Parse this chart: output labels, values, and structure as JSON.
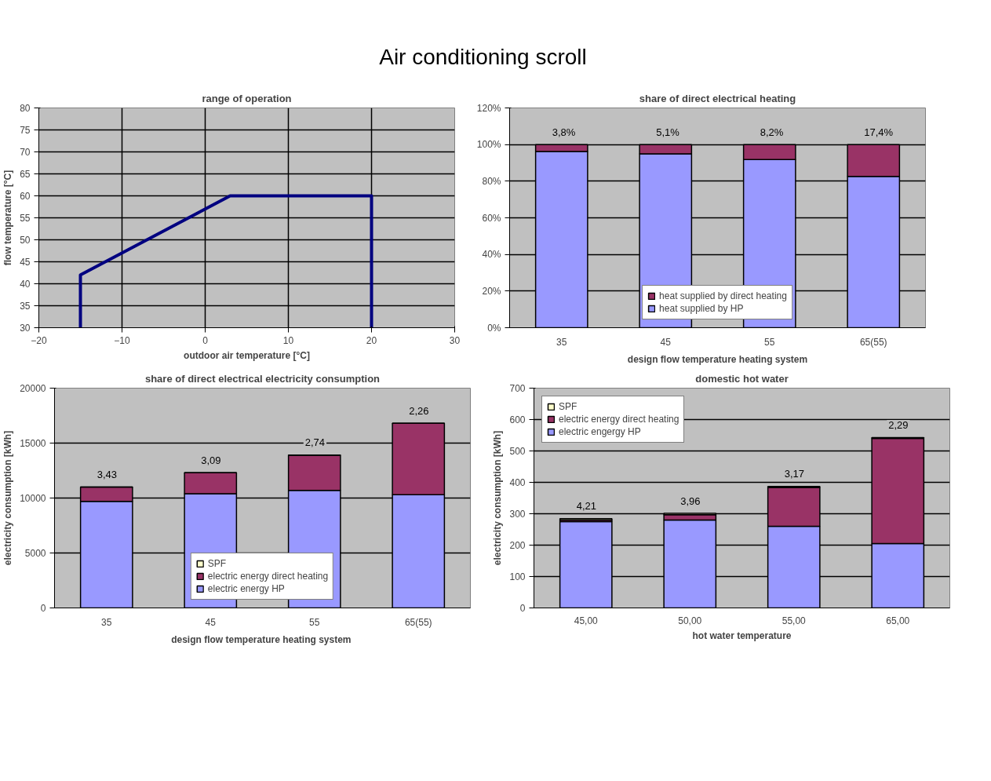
{
  "chart_data": [
    {
      "type": "other",
      "title": "Air conditioning scroll"
    },
    {
      "type": "line",
      "title": "range of operation",
      "xlabel": "outdoor air temperature [°C]",
      "ylabel": "flow temperature [°C]",
      "x": [
        -15,
        -15,
        3,
        20,
        20
      ],
      "series": [
        {
          "color": "#000080",
          "values": [
            30,
            42,
            60,
            60,
            30
          ]
        }
      ],
      "xlim": [
        -20,
        30
      ],
      "xticks": [
        -20,
        -10,
        0,
        10,
        20,
        30
      ],
      "ylim": [
        30,
        80
      ],
      "yticks": [
        30,
        35,
        40,
        45,
        50,
        55,
        60,
        65,
        70,
        75,
        80
      ],
      "grid": true,
      "legend": false,
      "marker": "none",
      "line_style": "solid"
    },
    {
      "type": "bar",
      "stacked": true,
      "title": "share of direct electrical heating",
      "xlabel": "design flow temperature heating system",
      "categories": [
        "35",
        "45",
        "55",
        "65(55)"
      ],
      "series": [
        {
          "name": "heat supplied by HP",
          "color": "#9999ff",
          "values": [
            96.2,
            94.9,
            91.8,
            82.6
          ]
        },
        {
          "name": "heat supplied by direct heating",
          "color": "#993366",
          "values": [
            3.8,
            5.1,
            8.2,
            17.4
          ],
          "value_labels": [
            "3,8%",
            "5,1%",
            "8,2%",
            "17,4%"
          ]
        }
      ],
      "ylim": [
        0,
        120
      ],
      "yticks": [
        {
          "value": 0,
          "label": "0%"
        },
        {
          "value": 20,
          "label": "20%"
        },
        {
          "value": 40,
          "label": "40%"
        },
        {
          "value": 60,
          "label": "60%"
        },
        {
          "value": 80,
          "label": "80%"
        },
        {
          "value": 100,
          "label": "100%"
        },
        {
          "value": 120,
          "label": "120%"
        }
      ],
      "grid": "y",
      "legend": "bottom"
    },
    {
      "type": "bar",
      "stacked": true,
      "title": "share of direct electrical electricity consumption",
      "xlabel": "design  flow temperature heating system",
      "ylabel": "electricity consumption [kWh]",
      "categories": [
        "35",
        "45",
        "55",
        "65(55)"
      ],
      "series": [
        {
          "name": "electric energy HP",
          "color": "#9999ff",
          "values": [
            9700,
            10400,
            10700,
            10300
          ]
        },
        {
          "name": "electric energy direct heating",
          "color": "#993366",
          "values": [
            1300,
            1900,
            3200,
            6500
          ]
        },
        {
          "name": "SPF",
          "color": "#ffffcc",
          "values": [
            3.43,
            3.09,
            2.74,
            2.26
          ],
          "value_labels": [
            "3,43",
            "3,09",
            "2,74",
            "2,26"
          ]
        }
      ],
      "ylim": [
        0,
        20000
      ],
      "yticks": [
        0,
        5000,
        10000,
        15000,
        20000
      ],
      "grid": "y",
      "legend": "bottom"
    },
    {
      "type": "bar",
      "stacked": true,
      "title": "domestic hot water",
      "xlabel": "hot water temperature",
      "ylabel": "electricity consumption [kWh]",
      "categories": [
        "45,00",
        "50,00",
        "55,00",
        "65,00"
      ],
      "series": [
        {
          "name": "electric engergy HP",
          "color": "#9999ff",
          "values": [
            275,
            280,
            260,
            205
          ]
        },
        {
          "name": "electric energy direct heating",
          "color": "#993366",
          "values": [
            5,
            17,
            124,
            335
          ]
        },
        {
          "name": "SPF",
          "color": "#ffffcc",
          "values": [
            4.21,
            3.96,
            3.17,
            2.29
          ],
          "value_labels": [
            "4,21",
            "3,96",
            "3,17",
            "2,29"
          ]
        }
      ],
      "ylim": [
        0,
        700
      ],
      "yticks": [
        0,
        100,
        200,
        300,
        400,
        500,
        600,
        700
      ],
      "grid": "y",
      "legend": "top left"
    }
  ]
}
